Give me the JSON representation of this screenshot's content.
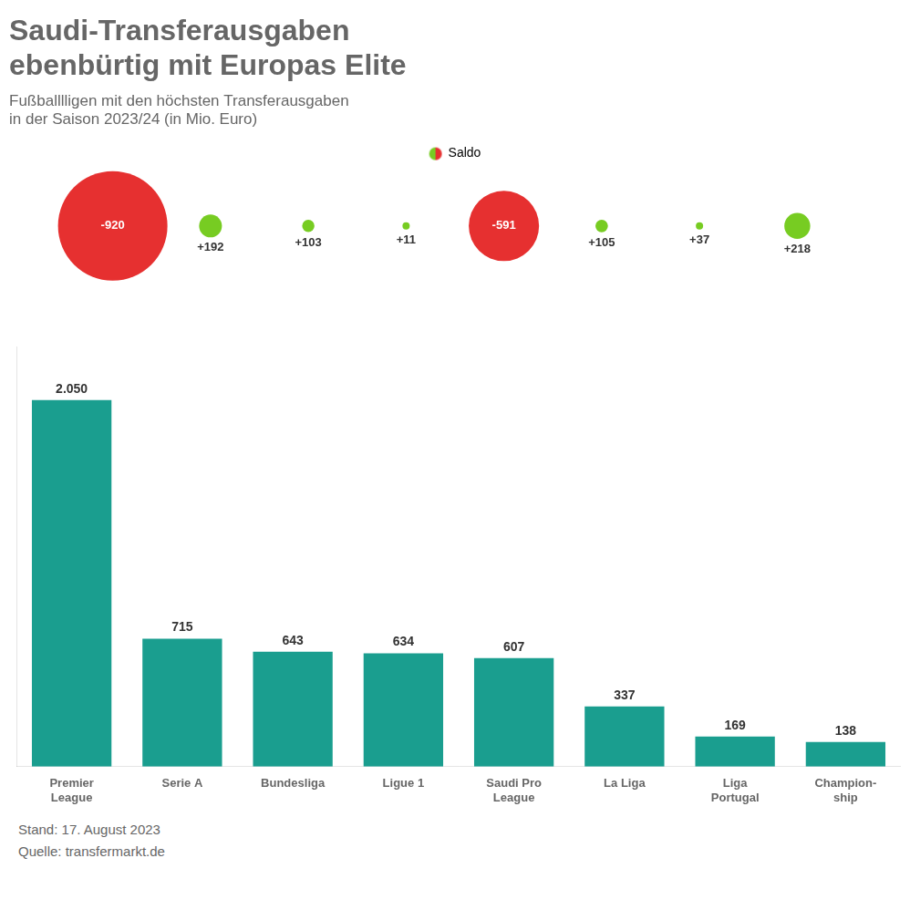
{
  "chart_data": [
    {
      "type": "bubble",
      "title": "Saudi-Transferausgaben\nebenbürtig mit Europas Elite",
      "subtitle": "Fußballl­ligen mit den höchsten Transferausgaben\nin der Saison 2023/24 (in Mio. Euro)",
      "series": [
        {
          "name": "Saldo",
          "values": [
            -920,
            192,
            103,
            11,
            -591,
            105,
            37,
            218
          ],
          "value_labels": [
            "-920",
            "+192",
            "+103",
            "+11",
            "-591",
            "+105",
            "+37",
            "+218"
          ],
          "colors": [
            "#e63030",
            "#77cc22",
            "#77cc22",
            "#77cc22",
            "#e63030",
            "#77cc22",
            "#77cc22",
            "#77cc22"
          ]
        }
      ],
      "legend": "top",
      "data_labels": true,
      "tick_labels": false,
      "grid": false
    },
    {
      "type": "bar",
      "categories": [
        "Premier\nLeague",
        "Serie A",
        "Bundesliga",
        "Ligue 1",
        "Saudi Pro\nLeague",
        "La Liga",
        "Liga\nPortugal",
        "Champion-\nship"
      ],
      "values": [
        2050,
        715,
        643,
        634,
        607,
        337,
        169,
        138
      ],
      "value_labels": [
        "2.050",
        "715",
        "643",
        "634",
        "607",
        "337",
        "169",
        "138"
      ],
      "color": "#1a9e8f",
      "ylim": [
        0,
        2350
      ],
      "data_labels": true,
      "tick_labels": "x",
      "grid": false,
      "annotations": [
        "Stand: 17. August 2023",
        "Quelle: transfermarkt.de"
      ]
    }
  ]
}
